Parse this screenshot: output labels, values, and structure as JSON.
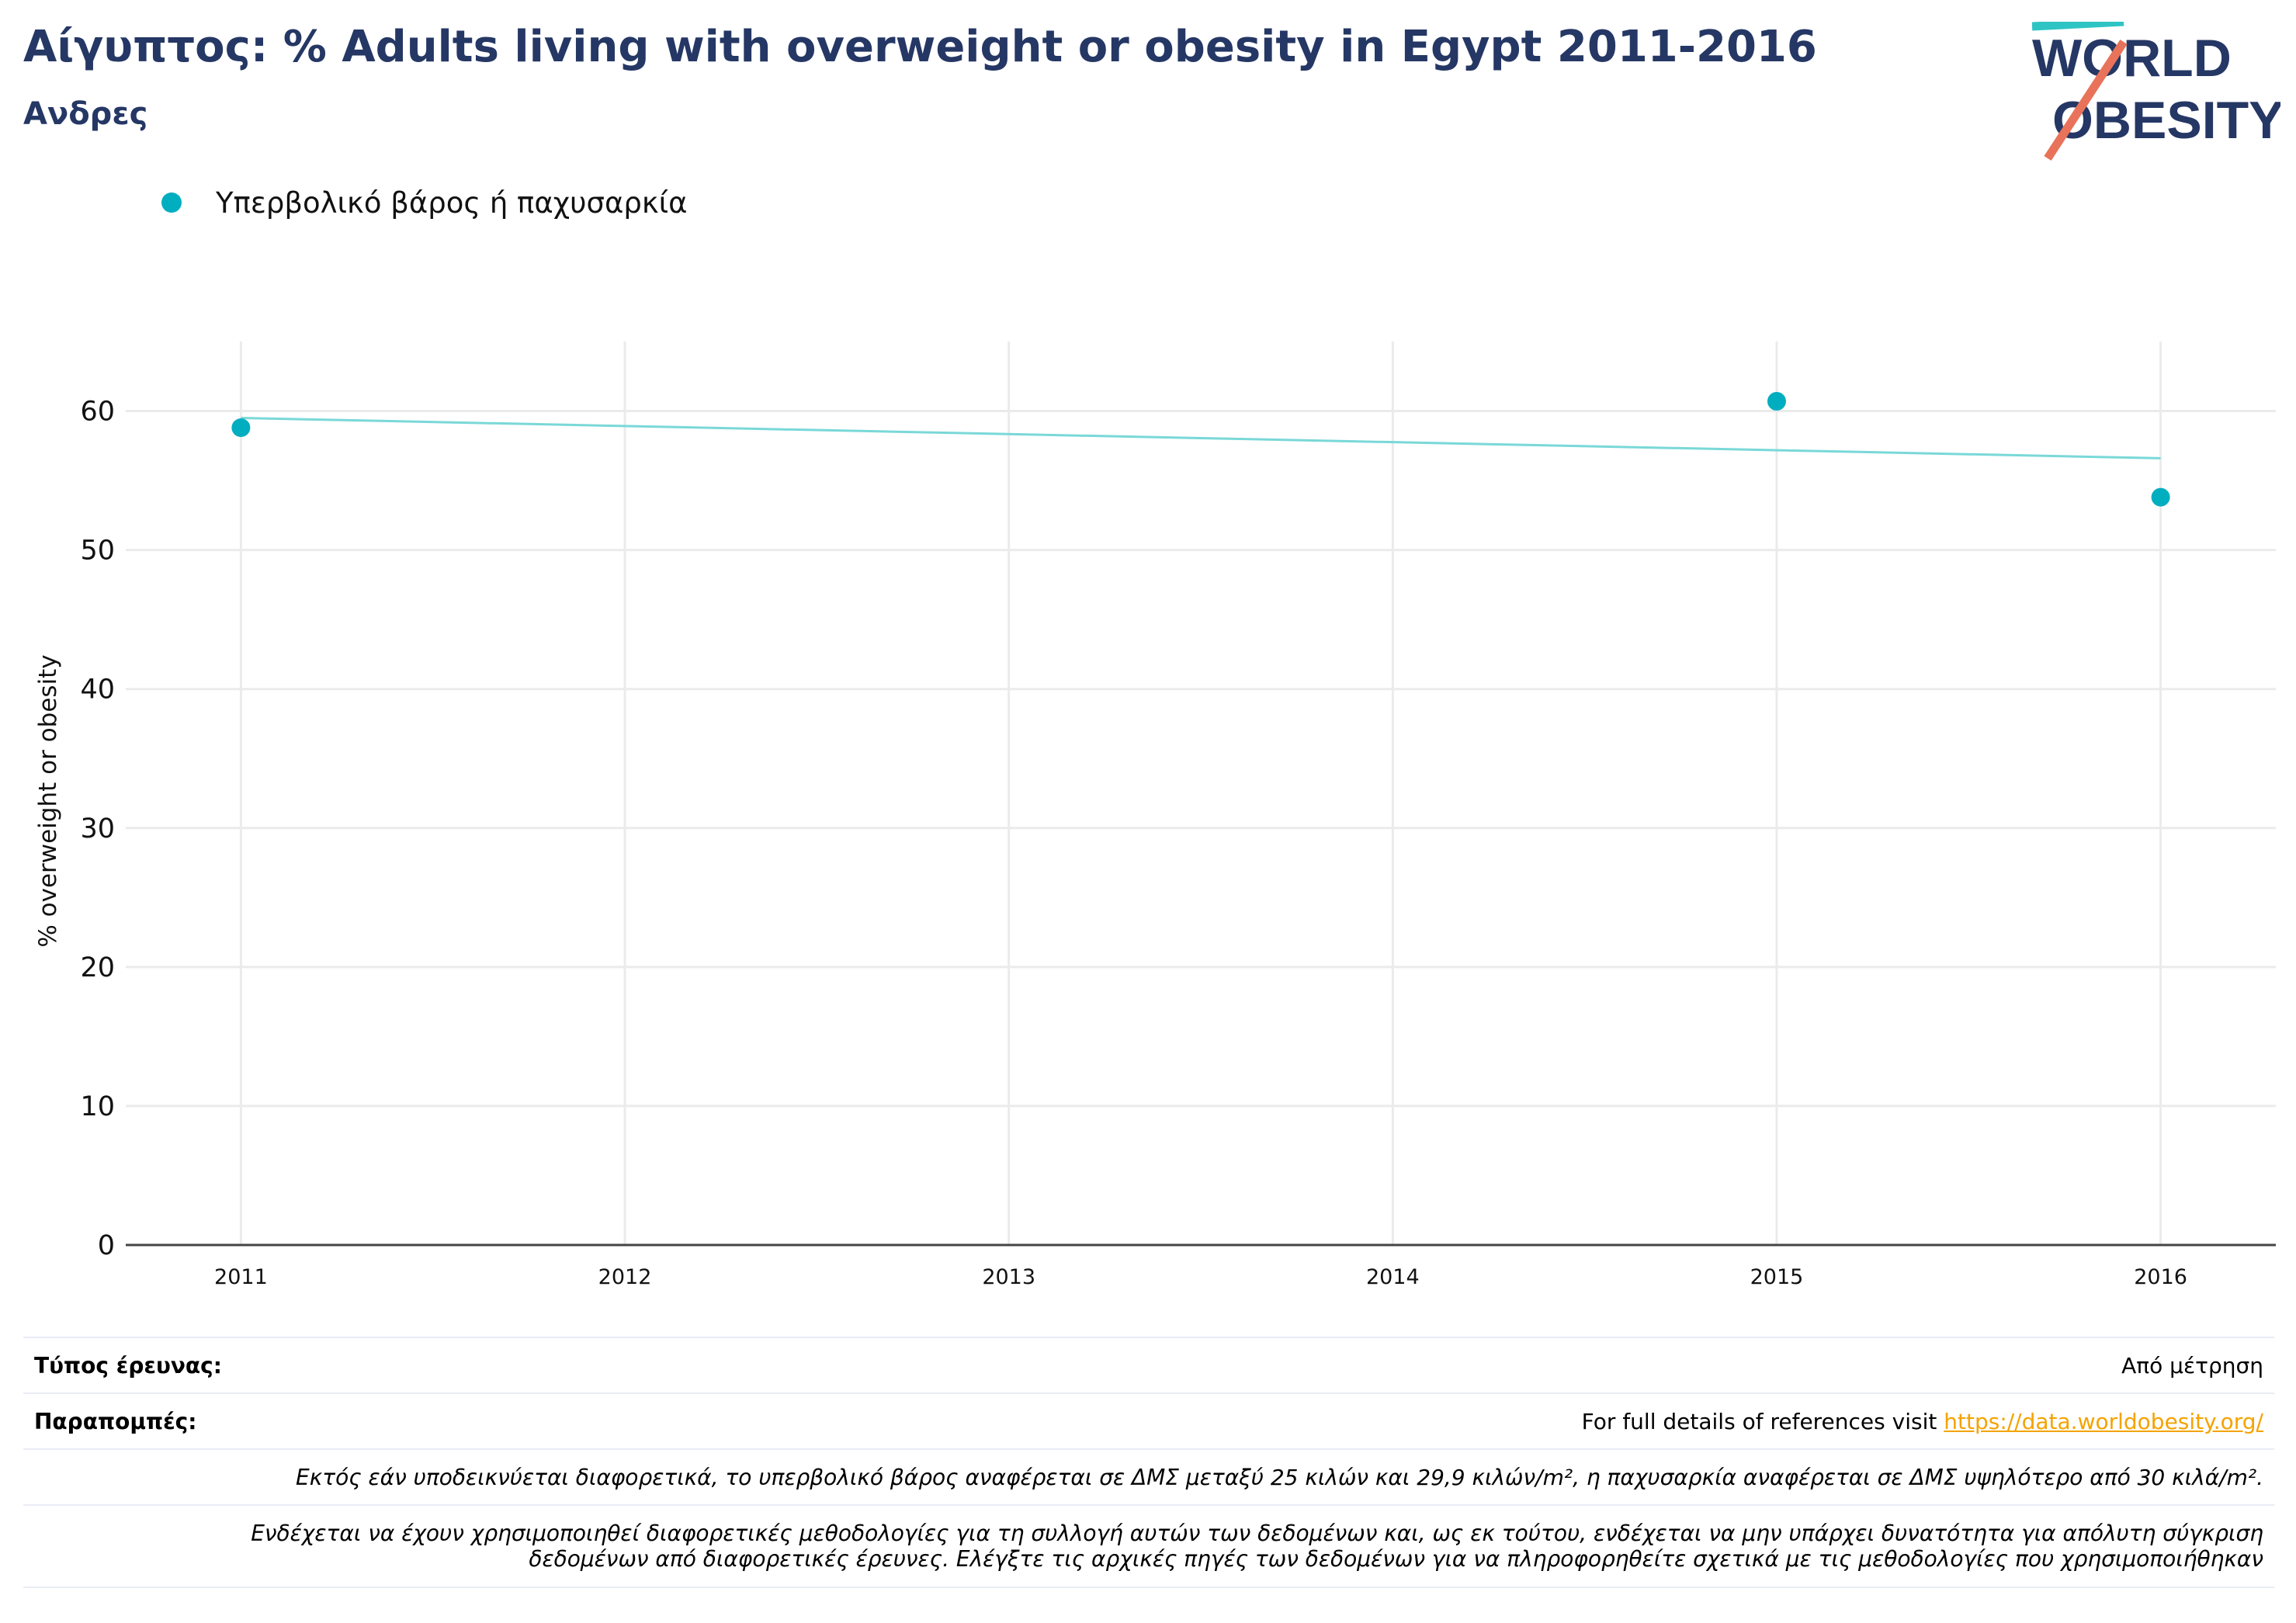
{
  "header": {
    "title": "Αίγυπτος: % Adults living with overweight or obesity in Egypt 2011-2016",
    "subtitle": "Ανδρες"
  },
  "logo": {
    "line1": "WORLD",
    "line2": "OBESITY"
  },
  "colors": {
    "point": "#00aec0",
    "trend": "#7ad8d8",
    "title": "#253764",
    "grid": "#ebebeb",
    "axis": "#444444",
    "link": "#f4a300"
  },
  "chart_data": {
    "type": "scatter",
    "title": "Αίγυπτος: % Adults living with overweight or obesity in Egypt 2011-2016",
    "subtitle": "Ανδρες",
    "xlabel": "",
    "ylabel": "% overweight or obesity",
    "xlim": [
      2010.7,
      2016.3
    ],
    "ylim": [
      0,
      65
    ],
    "x_ticks": [
      2011,
      2012,
      2013,
      2014,
      2015,
      2016
    ],
    "y_ticks": [
      0,
      10,
      20,
      30,
      40,
      50,
      60
    ],
    "grid": true,
    "legend_position": "top-left",
    "series": [
      {
        "name": "Υπερβολικό βάρος ή παχυσαρκία",
        "x": [
          2011,
          2015,
          2016
        ],
        "y": [
          58.8,
          60.7,
          53.8
        ]
      }
    ],
    "trendline": {
      "x": [
        2011,
        2016
      ],
      "y": [
        59.5,
        56.6
      ]
    }
  },
  "footer": {
    "survey_label": "Τύπος έρευνας:",
    "survey_value": "Από μέτρηση",
    "refs_label": "Παραπομπές:",
    "refs_text": "For full details of references visit ",
    "refs_link": "https://data.worldobesity.org/",
    "note1": "Εκτός εάν υποδεικνύεται διαφορετικά, το υπερβολικό βάρος αναφέρεται σε ΔΜΣ μεταξύ 25 κιλών και 29,9 κιλών/m², η παχυσαρκία αναφέρεται σε ΔΜΣ υψηλότερο από 30 κιλά/m².",
    "note2a": "Ενδέχεται να έχουν χρησιμοποιηθεί διαφορετικές μεθοδολογίες για τη συλλογή αυτών των δεδομένων και, ως εκ τούτου, ενδέχεται να μην υπάρχει δυνατότητα για απόλυτη σύγκριση",
    "note2b": "δεδομένων από διαφορετικές έρευνες. Ελέγξτε τις αρχικές πηγές των δεδομένων για να πληροφορηθείτε σχετικά με τις μεθοδολογίες που χρησιμοποιήθηκαν"
  }
}
